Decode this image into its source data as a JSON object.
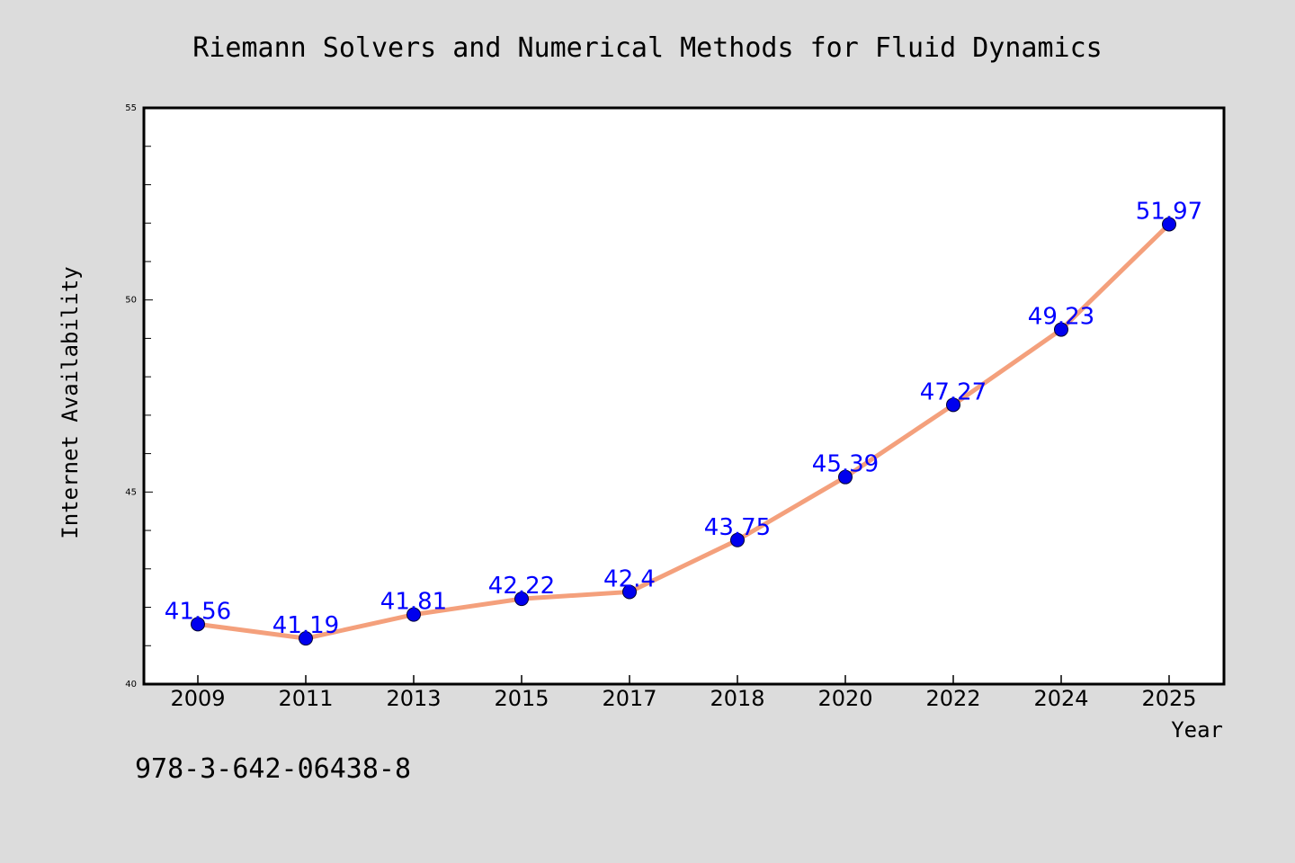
{
  "chart_data": {
    "type": "line",
    "title": "Riemann Solvers and Numerical Methods for Fluid Dynamics",
    "xlabel": "Year",
    "ylabel": "Internet Availability",
    "categories": [
      "2009",
      "2011",
      "2013",
      "2015",
      "2017",
      "2018",
      "2020",
      "2022",
      "2024",
      "2025"
    ],
    "values": [
      41.56,
      41.19,
      41.81,
      42.22,
      42.4,
      43.75,
      45.39,
      47.27,
      49.23,
      51.97
    ],
    "data_labels": [
      "41.56",
      "41.19",
      "41.81",
      "42.22",
      "42.4",
      "43.75",
      "45.39",
      "47.27",
      "49.23",
      "51.97"
    ],
    "ylim": [
      40,
      55
    ],
    "yticks": [
      "40",
      "45",
      "50",
      "55"
    ],
    "grid": false,
    "legend": "none",
    "colors": {
      "line": "#f4a07c",
      "marker": "#0000ee",
      "label": "#0000ff",
      "background": "#dcdcdc",
      "plot_background": "#ffffff"
    }
  },
  "footer": {
    "isbn": "978-3-642-06438-8"
  }
}
